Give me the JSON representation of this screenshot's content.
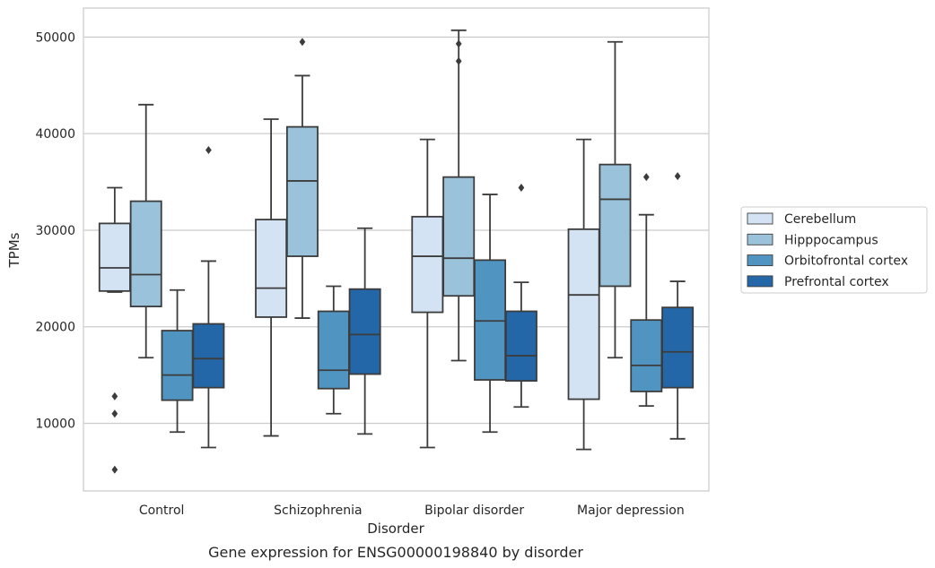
{
  "chart_data": {
    "type": "box",
    "xlabel": "Disorder",
    "ylabel": "TPMs",
    "caption": "Gene expression for ENSG00000198840 by disorder",
    "ylim": [
      3000,
      53000
    ],
    "yticks": [
      10000,
      20000,
      30000,
      40000,
      50000
    ],
    "grid": true,
    "legend_position": "right",
    "categories": [
      "Control",
      "Schizophrenia",
      "Bipolar disorder",
      "Major depression"
    ],
    "series": [
      {
        "name": "Cerebellum",
        "color": "#d4e3f3",
        "boxes": [
          {
            "whisker_low": 23600,
            "q1": 23700,
            "median": 26100,
            "q3": 30700,
            "whisker_high": 34400,
            "outliers": [
              12800,
              11000,
              5200
            ]
          },
          {
            "whisker_low": 8700,
            "q1": 21000,
            "median": 24000,
            "q3": 31100,
            "whisker_high": 41500,
            "outliers": []
          },
          {
            "whisker_low": 7500,
            "q1": 21500,
            "median": 27300,
            "q3": 31400,
            "whisker_high": 39400,
            "outliers": []
          },
          {
            "whisker_low": 7300,
            "q1": 12500,
            "median": 23300,
            "q3": 30100,
            "whisker_high": 39400,
            "outliers": []
          }
        ]
      },
      {
        "name": "Hipppocampus",
        "color": "#9ac2db",
        "boxes": [
          {
            "whisker_low": 16800,
            "q1": 22100,
            "median": 25400,
            "q3": 33000,
            "whisker_high": 43000,
            "outliers": []
          },
          {
            "whisker_low": 20900,
            "q1": 27300,
            "median": 35100,
            "q3": 40700,
            "whisker_high": 46000,
            "outliers": [
              49500
            ]
          },
          {
            "whisker_low": 16500,
            "q1": 23200,
            "median": 27100,
            "q3": 35500,
            "whisker_high": 50700,
            "outliers": [
              49300,
              47500
            ]
          },
          {
            "whisker_low": 16800,
            "q1": 24200,
            "median": 33200,
            "q3": 36800,
            "whisker_high": 49500,
            "outliers": []
          }
        ]
      },
      {
        "name": "Orbitofrontal cortex",
        "color": "#5095c2",
        "boxes": [
          {
            "whisker_low": 9100,
            "q1": 12400,
            "median": 15000,
            "q3": 19600,
            "whisker_high": 23800,
            "outliers": []
          },
          {
            "whisker_low": 11000,
            "q1": 13600,
            "median": 15500,
            "q3": 21600,
            "whisker_high": 24200,
            "outliers": []
          },
          {
            "whisker_low": 9100,
            "q1": 14500,
            "median": 20600,
            "q3": 26900,
            "whisker_high": 33700,
            "outliers": []
          },
          {
            "whisker_low": 11800,
            "q1": 13300,
            "median": 16000,
            "q3": 20700,
            "whisker_high": 31600,
            "outliers": [
              35500
            ]
          }
        ]
      },
      {
        "name": "Prefrontal cortex",
        "color": "#2467a8",
        "boxes": [
          {
            "whisker_low": 7500,
            "q1": 13700,
            "median": 16700,
            "q3": 20300,
            "whisker_high": 26800,
            "outliers": [
              38300
            ]
          },
          {
            "whisker_low": 8900,
            "q1": 15100,
            "median": 19200,
            "q3": 23900,
            "whisker_high": 30200,
            "outliers": []
          },
          {
            "whisker_low": 11700,
            "q1": 14400,
            "median": 17000,
            "q3": 21600,
            "whisker_high": 24600,
            "outliers": [
              34400
            ]
          },
          {
            "whisker_low": 8400,
            "q1": 13700,
            "median": 17400,
            "q3": 22000,
            "whisker_high": 24700,
            "outliers": [
              35600
            ]
          }
        ]
      }
    ]
  }
}
